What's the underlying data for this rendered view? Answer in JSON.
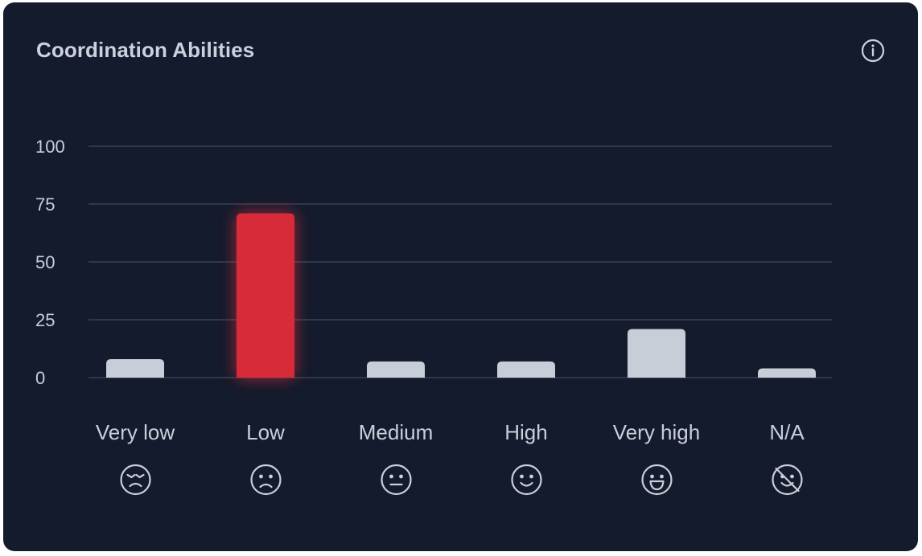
{
  "card": {
    "title": "Coordination Abilities",
    "info_icon": "info-circle-icon"
  },
  "chart_data": {
    "type": "bar",
    "title": "Coordination Abilities",
    "xlabel": "",
    "ylabel": "",
    "ylim": [
      0,
      100
    ],
    "yticks": [
      "0",
      "25",
      "50",
      "75",
      "100"
    ],
    "grid": true,
    "categories": [
      "Very low",
      "Low",
      "Medium",
      "High",
      "Very high",
      "N/A"
    ],
    "category_icons": [
      "weary-face-icon",
      "frowning-face-icon",
      "neutral-face-icon",
      "smiling-face-icon",
      "grinning-face-icon",
      "face-slash-icon"
    ],
    "values": [
      8,
      71,
      7,
      7,
      21,
      4
    ],
    "highlight_index": 1,
    "colors": {
      "bar": "#c8ced8",
      "highlight": "#d72b3a",
      "grid": "#384256",
      "text": "#c9cfd9",
      "background": "#131b2c"
    }
  }
}
